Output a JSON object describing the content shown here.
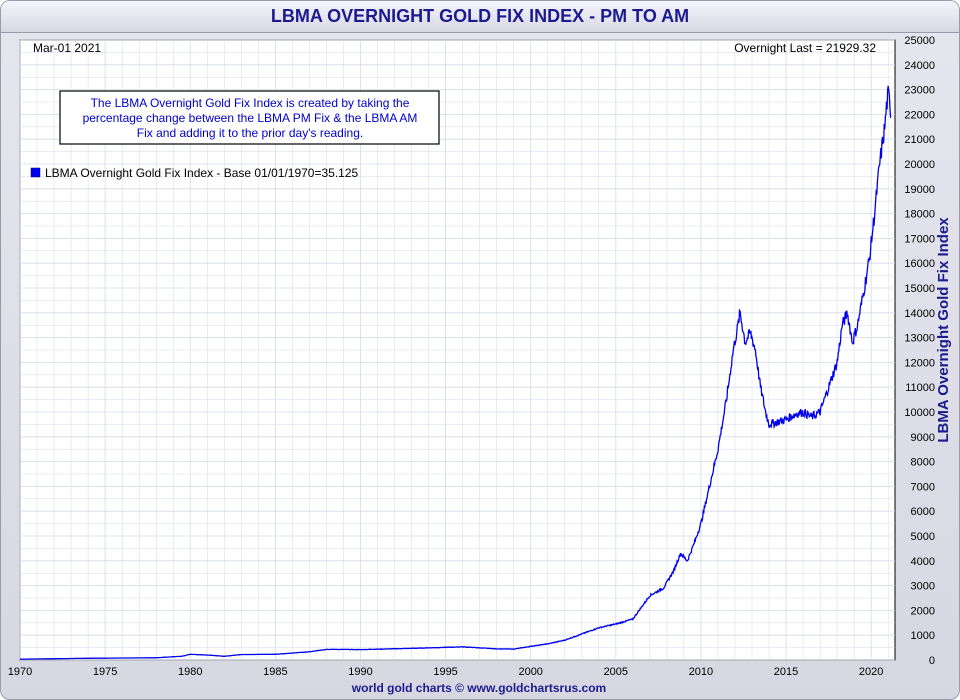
{
  "title": "LBMA OVERNIGHT GOLD FIX INDEX - PM TO AM",
  "footer": "world gold charts © www.goldchartsrus.com",
  "date_label": "Mar-01  2021",
  "last_label": "Overnight Last = 21929.32",
  "note": [
    "The LBMA Overnight Gold Fix Index is created by taking the",
    "percentage change between the LBMA PM Fix & the LBMA AM",
    "Fix and adding it to the prior day's reading."
  ],
  "colors": {
    "line": "#0000ee",
    "title": "#1b1b8f",
    "grid": "#d4dbe8"
  },
  "chart_data": {
    "type": "line",
    "ylabel": "LBMA Overnight Gold Fix Index",
    "ylim": [
      0,
      25000
    ],
    "xlim": [
      1970,
      2021.4
    ],
    "y_ticks": [
      0,
      1000,
      2000,
      3000,
      4000,
      5000,
      6000,
      7000,
      8000,
      9000,
      10000,
      11000,
      12000,
      13000,
      14000,
      15000,
      16000,
      17000,
      18000,
      19000,
      20000,
      21000,
      22000,
      23000,
      24000,
      25000
    ],
    "x_ticks": [
      1970,
      1975,
      1980,
      1985,
      1990,
      1995,
      2000,
      2005,
      2010,
      2015,
      2020
    ],
    "grid": true,
    "legend_position": "top-left",
    "series": [
      {
        "name": "LBMA Overnight Gold Fix Index - Base 01/01/1970=35.125",
        "x": [
          1970,
          1972,
          1974,
          1976,
          1978,
          1979.5,
          1980,
          1981,
          1982,
          1983,
          1985,
          1987,
          1988,
          1990,
          1993,
          1996,
          1998,
          1999,
          2000,
          2001,
          2002,
          2003,
          2004,
          2005,
          2006,
          2007,
          2007.8,
          2008.4,
          2008.8,
          2009.2,
          2009.6,
          2010,
          2010.5,
          2011,
          2011.5,
          2011.9,
          2012.1,
          2012.3,
          2012.6,
          2012.9,
          2013.2,
          2013.5,
          2013.8,
          2014,
          2014.5,
          2015,
          2015.5,
          2016,
          2016.5,
          2017,
          2017.5,
          2018,
          2018.3,
          2018.6,
          2018.9,
          2019.2,
          2019.6,
          2019.9,
          2020.2,
          2020.5,
          2020.8,
          2020.9,
          2021.0,
          2021.1,
          2021.17
        ],
        "values": [
          35,
          50,
          70,
          80,
          90,
          150,
          230,
          200,
          150,
          220,
          230,
          330,
          430,
          420,
          470,
          530,
          450,
          440,
          550,
          650,
          800,
          1050,
          1300,
          1450,
          1650,
          2600,
          2900,
          3600,
          4300,
          4000,
          4700,
          5500,
          7000,
          8500,
          10500,
          12500,
          13200,
          14000,
          12800,
          13200,
          12500,
          11000,
          10000,
          9500,
          9600,
          9700,
          9900,
          10000,
          9800,
          10000,
          11000,
          12000,
          13500,
          14000,
          12800,
          13500,
          15000,
          16200,
          18000,
          20000,
          21500,
          22300,
          22800,
          22500,
          21929
        ]
      }
    ]
  }
}
